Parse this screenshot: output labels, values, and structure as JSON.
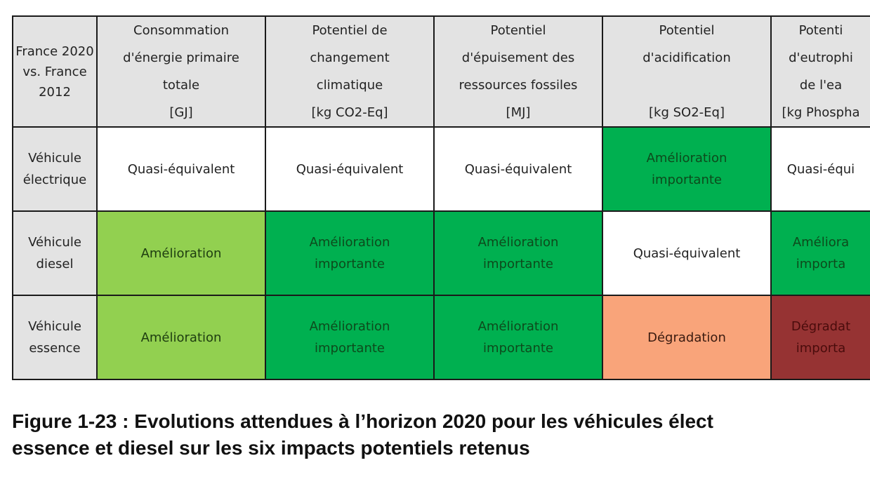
{
  "table": {
    "corner": [
      "France 2020",
      "vs. France",
      "2012"
    ],
    "columns": [
      {
        "lines": [
          "Consommation",
          "d'énergie primaire",
          "totale",
          "[GJ]"
        ]
      },
      {
        "lines": [
          "Potentiel de",
          "changement",
          "climatique",
          "[kg CO2-Eq]"
        ]
      },
      {
        "lines": [
          "Potentiel",
          "d'épuisement des",
          "ressources fossiles",
          "[MJ]"
        ]
      },
      {
        "lines": [
          "Potentiel",
          "d'acidification",
          "",
          "[kg SO2-Eq]"
        ]
      },
      {
        "lines": [
          "Potenti",
          "d'eutrophi",
          "de l'ea",
          "[kg Phospha"
        ]
      }
    ],
    "rows": [
      {
        "label": [
          "Véhicule",
          "électrique"
        ],
        "cells": [
          {
            "lines": [
              "Quasi-équivalent"
            ],
            "color": "#ffffff"
          },
          {
            "lines": [
              "Quasi-équivalent"
            ],
            "color": "#ffffff"
          },
          {
            "lines": [
              "Quasi-équivalent"
            ],
            "color": "#ffffff"
          },
          {
            "lines": [
              "Amélioration",
              "importante"
            ],
            "color": "#00b050"
          },
          {
            "lines": [
              "Quasi-équi"
            ],
            "color": "#ffffff"
          }
        ]
      },
      {
        "label": [
          "Véhicule",
          "diesel"
        ],
        "cells": [
          {
            "lines": [
              "Amélioration"
            ],
            "color": "#92d050"
          },
          {
            "lines": [
              "Amélioration",
              "importante"
            ],
            "color": "#00b050"
          },
          {
            "lines": [
              "Amélioration",
              "importante"
            ],
            "color": "#00b050"
          },
          {
            "lines": [
              "Quasi-équivalent"
            ],
            "color": "#ffffff"
          },
          {
            "lines": [
              "Améliora",
              "importa"
            ],
            "color": "#00b050"
          }
        ]
      },
      {
        "label": [
          "Véhicule",
          "essence"
        ],
        "cells": [
          {
            "lines": [
              "Amélioration"
            ],
            "color": "#92d050"
          },
          {
            "lines": [
              "Amélioration",
              "importante"
            ],
            "color": "#00b050"
          },
          {
            "lines": [
              "Amélioration",
              "importante"
            ],
            "color": "#00b050"
          },
          {
            "lines": [
              "Dégradation"
            ],
            "color": "#f9a47a"
          },
          {
            "lines": [
              "Dégradat",
              "importa"
            ],
            "color": "#963333"
          }
        ]
      }
    ]
  },
  "caption": {
    "line1": "Figure 1-23 : Evolutions attendues à l’horizon 2020 pour les véhicules élect",
    "line2": "essence et diesel sur les six impacts potentiels retenus"
  }
}
